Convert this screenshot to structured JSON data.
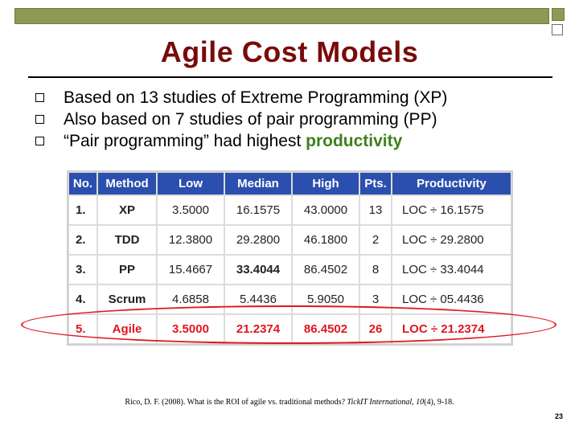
{
  "slide": {
    "title": "Agile Cost Models",
    "bullets": [
      {
        "text": "Based on 13 studies of Extreme Programming (XP)"
      },
      {
        "text": "Also based on 7 studies of pair programming (PP)"
      },
      {
        "text": "“Pair programming” had highest ",
        "highlight": "productivity"
      }
    ],
    "page_number": "23",
    "colors": {
      "title": "#7a0a0a",
      "accent_bar": "#8c9a56",
      "table_header": "#2b4fae",
      "highlight_green": "#2a9b1e",
      "agile_red": "#e0161f"
    }
  },
  "table": {
    "headers": [
      "No.",
      "Method",
      "Low",
      "Median",
      "High",
      "Pts.",
      "Productivity"
    ],
    "rows": [
      [
        "1.",
        "XP",
        "3.5000",
        "16.1575",
        "43.0000",
        "13",
        "LOC ÷ 16.1575"
      ],
      [
        "2.",
        "TDD",
        "12.3800",
        "29.2800",
        "46.1800",
        "2",
        "LOC ÷ 29.2800"
      ],
      [
        "3.",
        "PP",
        "15.4667",
        "33.4044",
        "86.4502",
        "8",
        "LOC ÷ 33.4044"
      ],
      [
        "4.",
        "Scrum",
        "4.6858",
        "5.4436",
        "5.9050",
        "3",
        "LOC ÷ 05.4436"
      ],
      [
        "5.",
        "Agile",
        "3.5000",
        "21.2374",
        "86.4502",
        "26",
        "LOC ÷ 21.2374"
      ]
    ]
  },
  "citation": {
    "prefix": "Rico, D. F. (2008). What is the ROI of agile vs. traditional methods? ",
    "journal": "TickIT International",
    "volume": "10",
    "suffix": "(4), 9-18."
  }
}
